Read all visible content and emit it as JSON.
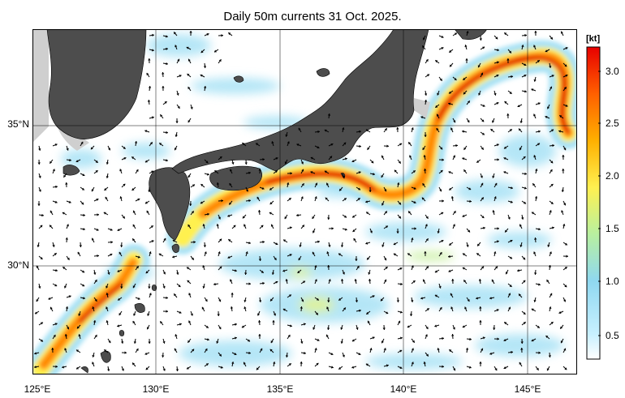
{
  "title": "Daily 50m currents 31 Oct. 2025.",
  "lat_labels": [
    "35°N",
    "30°N"
  ],
  "lon_labels": [
    "125°E",
    "130°E",
    "135°E",
    "140°E",
    "145°E"
  ],
  "colorbar": {
    "unit": "[kt]",
    "ticks": [
      "3.0",
      "2.5",
      "2.0",
      "1.5",
      "1.0",
      "0.5"
    ],
    "colors": [
      "#ffffff",
      "#c8f0ff",
      "#8fd8f0",
      "#b8f0a0",
      "#fff050",
      "#ffb000",
      "#ff6000",
      "#ff0000",
      "#e80000"
    ]
  },
  "colors": {
    "land": "#4d4d4d",
    "shallow": "#cfcfcf",
    "slow_current": "#a8e2f5",
    "fast_current": "#ff3a00",
    "arrow": "#000000"
  }
}
